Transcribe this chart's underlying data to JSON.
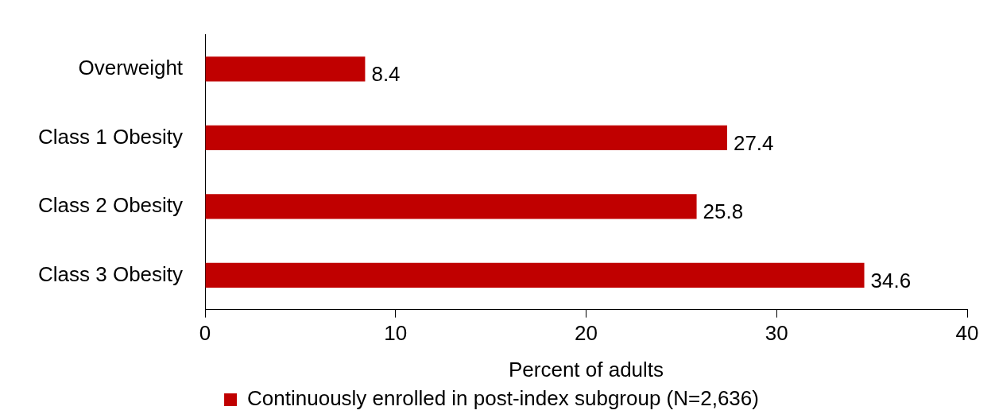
{
  "chart_data": {
    "type": "bar",
    "orientation": "horizontal",
    "xlabel": "Percent of adults",
    "categories": [
      "Overweight",
      "Class 1 Obesity",
      "Class 2 Obesity",
      "Class 3 Obesity"
    ],
    "series": [
      {
        "name": "Continuously enrolled in post-index subgroup (N=2,636)",
        "color": "#c00000",
        "values": [
          8.4,
          27.4,
          25.8,
          34.6
        ]
      }
    ],
    "xlim": [
      0,
      40
    ],
    "xticks": [
      0,
      10,
      20,
      30,
      40
    ],
    "grid": false,
    "legend": "bottom",
    "data_labels": true
  }
}
